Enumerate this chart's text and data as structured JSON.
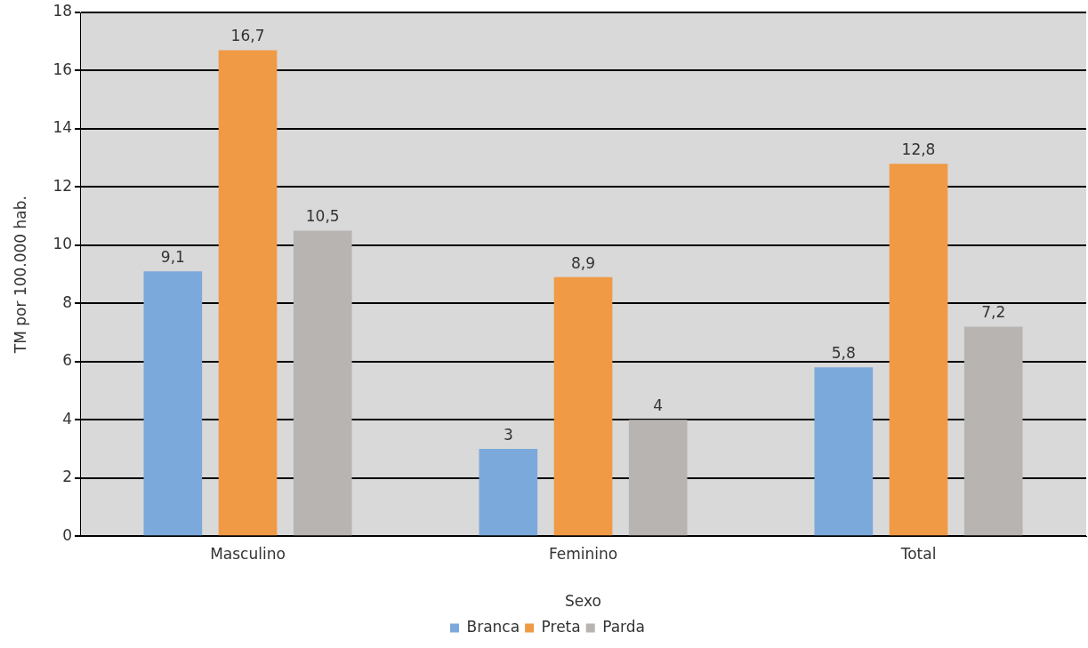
{
  "chart_data": {
    "type": "bar",
    "xlabel": "Sexo",
    "ylabel": "TM por 100.000 hab.",
    "categories": [
      "Masculino",
      "Feminino",
      "Total"
    ],
    "series": [
      {
        "name": "Branca",
        "color": "#7ba9db",
        "values": [
          9.1,
          3,
          5.8
        ],
        "value_labels": [
          "9,1",
          "3",
          "5,8"
        ]
      },
      {
        "name": "Preta",
        "color": "#f09a45",
        "values": [
          16.7,
          8.9,
          12.8
        ],
        "value_labels": [
          "16,7",
          "8,9",
          "12,8"
        ]
      },
      {
        "name": "Parda",
        "color": "#b8b4b2",
        "values": [
          10.5,
          4,
          7.2
        ],
        "value_labels": [
          "10,5",
          "4",
          "7,2"
        ]
      }
    ],
    "ylim": [
      0,
      18
    ],
    "yticks": [
      0,
      2,
      4,
      6,
      8,
      10,
      12,
      14,
      16,
      18
    ],
    "grid": "y",
    "legend": "bottom"
  }
}
